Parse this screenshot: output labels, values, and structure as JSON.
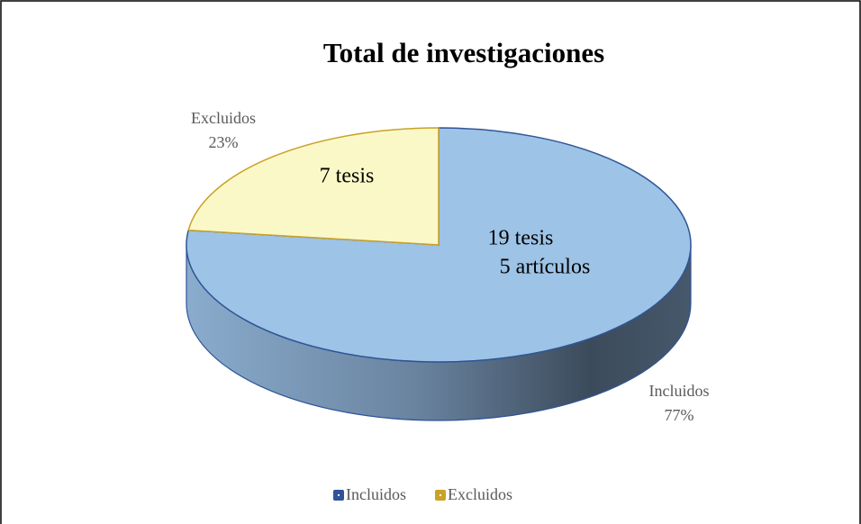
{
  "chart_data": {
    "type": "pie3d",
    "title": "Total de investigaciones",
    "categories": [
      "Incluidos",
      "Excluidos"
    ],
    "values": [
      77,
      23
    ],
    "value_labels": [
      "77%",
      "23%"
    ],
    "colors": [
      "#9dc3e6",
      "#fbf8c8"
    ],
    "edge_colors": [
      "#2f5597",
      "#c9a227"
    ],
    "legend_colors": [
      "#2f5597",
      "#c9a227"
    ],
    "slice_notes": [
      [
        "19 tesis",
        "5 artículos"
      ],
      [
        "7 tesis"
      ]
    ],
    "legend": "bottom"
  }
}
